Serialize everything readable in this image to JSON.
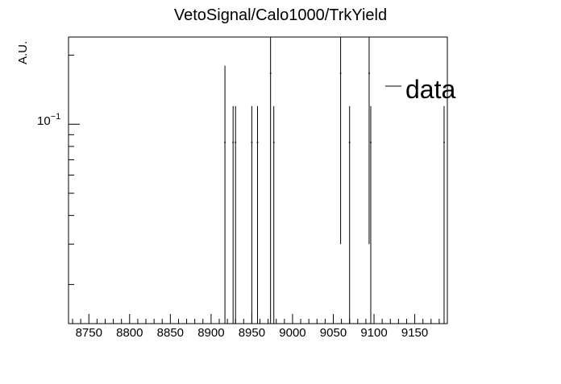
{
  "chart_data": {
    "type": "histogram",
    "title": "VetoSignal/Calo1000/TrkYield",
    "xlabel": "",
    "ylabel": "A.U.",
    "xlim": [
      8725,
      9190
    ],
    "ylim": [
      0.0135,
      0.24
    ],
    "y_scale": "log",
    "x_tick_labels": [
      "8750",
      "8800",
      "8850",
      "8900",
      "8950",
      "9000",
      "9050",
      "9100",
      "9150"
    ],
    "x_ticks": [
      8750,
      8800,
      8850,
      8900,
      8950,
      9000,
      9050,
      9100,
      9150
    ],
    "y_tick_base": "10",
    "y_tick_exp": "−1",
    "y_tick_value": 0.1,
    "legend": {
      "label": "data",
      "position": "top-right"
    },
    "grid": false,
    "series": [
      {
        "name": "data",
        "points": [
          {
            "x": 8917,
            "y": 0.0833,
            "yerr_low": 0.0833,
            "yerr_high": 0.0967
          },
          {
            "x": 8927,
            "y": 0.0833,
            "yerr_low": 0.0833,
            "yerr_high": 0.0367
          },
          {
            "x": 8930,
            "y": 0.0833,
            "yerr_low": 0.0833,
            "yerr_high": 0.0367
          },
          {
            "x": 8950,
            "y": 0.0833,
            "yerr_low": 0.0833,
            "yerr_high": 0.0367
          },
          {
            "x": 8957,
            "y": 0.0833,
            "yerr_low": 0.0833,
            "yerr_high": 0.0367
          },
          {
            "x": 8973,
            "y": 0.1667,
            "yerr_low": 0.1667,
            "yerr_high": 0.0733
          },
          {
            "x": 8977,
            "y": 0.0833,
            "yerr_low": 0.0833,
            "yerr_high": 0.0367
          },
          {
            "x": 9059,
            "y": 0.1667,
            "yerr_low": 0.1367,
            "yerr_high": 0.0733
          },
          {
            "x": 9070,
            "y": 0.0833,
            "yerr_low": 0.0833,
            "yerr_high": 0.0367
          },
          {
            "x": 9094,
            "y": 0.1667,
            "yerr_low": 0.1367,
            "yerr_high": 0.0733
          },
          {
            "x": 9096,
            "y": 0.0833,
            "yerr_low": 0.0833,
            "yerr_high": 0.0367
          },
          {
            "x": 9186,
            "y": 0.0833,
            "yerr_low": 0.0833,
            "yerr_high": 0.0367
          }
        ]
      }
    ]
  }
}
